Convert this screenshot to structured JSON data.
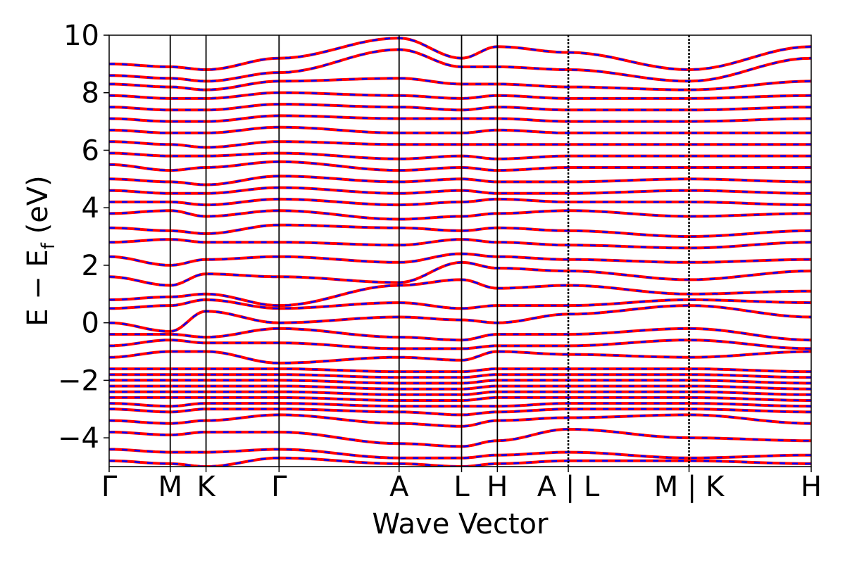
{
  "chart_data": {
    "type": "line",
    "title": "",
    "xlabel": "Wave Vector",
    "ylabel": "E − E",
    "ylabel_subscript": "f",
    "ylabel_unit": " (eV)",
    "ylim": [
      -5,
      10
    ],
    "yticks": [
      -4,
      -2,
      0,
      2,
      4,
      6,
      8,
      10
    ],
    "ytick_labels": [
      "−4",
      "−2",
      "0",
      "2",
      "4",
      "6",
      "8",
      "10"
    ],
    "kpath": [
      0,
      0.087,
      0.138,
      0.242,
      0.413,
      0.502,
      0.553,
      0.654,
      0.826,
      1.0
    ],
    "xtick_labels": [
      "Γ",
      "M",
      "K",
      "Γ",
      "A",
      "L",
      "H",
      "A | L",
      "M | K",
      "H"
    ],
    "path_breaks": [
      0.654,
      0.826
    ],
    "grid": false,
    "legend": "none",
    "series": [
      {
        "style": "solid",
        "color": "#ff0000"
      },
      {
        "style": "dashed",
        "color": "#0000ff"
      }
    ],
    "band_energies_at_kpoints": [
      [
        -4.8,
        -4.9,
        -5.0,
        -4.7,
        -4.9,
        -5.0,
        -4.9,
        -4.8,
        -4.8,
        -4.9
      ],
      [
        -4.4,
        -4.5,
        -4.5,
        -4.4,
        -4.7,
        -4.7,
        -4.6,
        -4.5,
        -4.7,
        -4.6
      ],
      [
        -3.8,
        -3.9,
        -3.8,
        -3.8,
        -4.2,
        -4.3,
        -4.1,
        -3.7,
        -4.0,
        -4.1
      ],
      [
        -3.4,
        -3.5,
        -3.4,
        -3.2,
        -3.5,
        -3.6,
        -3.4,
        -3.3,
        -3.2,
        -3.5
      ],
      [
        -3.0,
        -3.1,
        -3.0,
        -3.0,
        -3.1,
        -3.2,
        -3.1,
        -3.0,
        -3.0,
        -3.1
      ],
      [
        -2.8,
        -2.9,
        -2.8,
        -2.8,
        -2.9,
        -2.9,
        -2.9,
        -2.8,
        -2.8,
        -2.9
      ],
      [
        -2.6,
        -2.6,
        -2.6,
        -2.6,
        -2.7,
        -2.7,
        -2.6,
        -2.6,
        -2.6,
        -2.7
      ],
      [
        -2.4,
        -2.4,
        -2.4,
        -2.4,
        -2.5,
        -2.5,
        -2.4,
        -2.4,
        -2.4,
        -2.5
      ],
      [
        -2.2,
        -2.2,
        -2.2,
        -2.2,
        -2.3,
        -2.3,
        -2.2,
        -2.2,
        -2.2,
        -2.3
      ],
      [
        -2.0,
        -2.0,
        -2.0,
        -2.0,
        -2.1,
        -2.1,
        -2.0,
        -2.0,
        -2.0,
        -2.1
      ],
      [
        -1.8,
        -1.8,
        -1.8,
        -1.8,
        -1.9,
        -1.9,
        -1.8,
        -1.8,
        -1.8,
        -1.9
      ],
      [
        -1.6,
        -1.6,
        -1.6,
        -1.6,
        -1.7,
        -1.7,
        -1.6,
        -1.6,
        -1.6,
        -1.7
      ],
      [
        -1.2,
        -1.0,
        -1.0,
        -1.4,
        -1.2,
        -1.3,
        -1.0,
        -1.1,
        -1.2,
        -1.0
      ],
      [
        -0.8,
        -0.6,
        -0.7,
        -0.7,
        -0.9,
        -0.9,
        -0.8,
        -0.8,
        -0.6,
        -0.9
      ],
      [
        -0.4,
        -0.4,
        -0.5,
        -0.2,
        -0.5,
        -0.6,
        -0.4,
        -0.4,
        -0.2,
        -0.6
      ],
      [
        0.0,
        -0.3,
        0.4,
        0.0,
        0.2,
        0.1,
        0.0,
        0.3,
        0.6,
        0.2
      ],
      [
        0.5,
        0.6,
        0.8,
        0.5,
        0.7,
        0.5,
        0.6,
        0.6,
        0.8,
        0.7
      ],
      [
        0.8,
        0.9,
        1.0,
        0.6,
        1.3,
        1.5,
        1.2,
        1.3,
        1.0,
        1.1
      ],
      [
        1.6,
        1.3,
        1.7,
        1.6,
        1.4,
        2.1,
        1.9,
        1.8,
        1.5,
        1.8
      ],
      [
        2.3,
        2.0,
        2.2,
        2.3,
        2.1,
        2.4,
        2.3,
        2.2,
        2.1,
        2.2
      ],
      [
        2.8,
        2.9,
        2.8,
        2.8,
        2.7,
        2.9,
        2.8,
        2.7,
        2.6,
        2.8
      ],
      [
        3.3,
        3.2,
        3.1,
        3.4,
        3.3,
        3.2,
        3.3,
        3.2,
        3.0,
        3.2
      ],
      [
        3.8,
        3.9,
        3.7,
        3.9,
        3.6,
        3.7,
        3.8,
        3.9,
        3.7,
        3.8
      ],
      [
        4.2,
        4.2,
        4.1,
        4.3,
        4.1,
        4.2,
        4.3,
        4.2,
        4.2,
        4.1
      ],
      [
        4.6,
        4.5,
        4.5,
        4.7,
        4.5,
        4.6,
        4.5,
        4.5,
        4.6,
        4.5
      ],
      [
        5.0,
        4.9,
        4.8,
        5.1,
        4.9,
        5.0,
        4.9,
        4.9,
        5.0,
        4.9
      ],
      [
        5.5,
        5.3,
        5.4,
        5.6,
        5.3,
        5.4,
        5.3,
        5.4,
        5.4,
        5.4
      ],
      [
        5.9,
        5.8,
        5.8,
        5.9,
        5.7,
        5.8,
        5.7,
        5.8,
        5.8,
        5.8
      ],
      [
        6.3,
        6.2,
        6.1,
        6.3,
        6.2,
        6.2,
        6.2,
        6.2,
        6.2,
        6.2
      ],
      [
        6.7,
        6.6,
        6.6,
        6.8,
        6.6,
        6.6,
        6.7,
        6.6,
        6.6,
        6.6
      ],
      [
        7.1,
        7.0,
        7.0,
        7.2,
        7.1,
        7.1,
        7.1,
        7.0,
        7.0,
        7.1
      ],
      [
        7.5,
        7.4,
        7.4,
        7.6,
        7.5,
        7.4,
        7.5,
        7.4,
        7.4,
        7.5
      ],
      [
        7.9,
        7.8,
        7.8,
        8.0,
        7.9,
        7.8,
        7.9,
        7.8,
        7.8,
        7.9
      ],
      [
        8.3,
        8.2,
        8.1,
        8.4,
        8.5,
        8.3,
        8.3,
        8.2,
        8.1,
        8.4
      ],
      [
        8.6,
        8.5,
        8.4,
        8.7,
        9.5,
        8.9,
        8.9,
        8.8,
        8.4,
        9.2
      ],
      [
        9.0,
        8.9,
        8.8,
        9.2,
        9.9,
        9.2,
        9.6,
        9.4,
        8.8,
        9.6
      ]
    ]
  }
}
